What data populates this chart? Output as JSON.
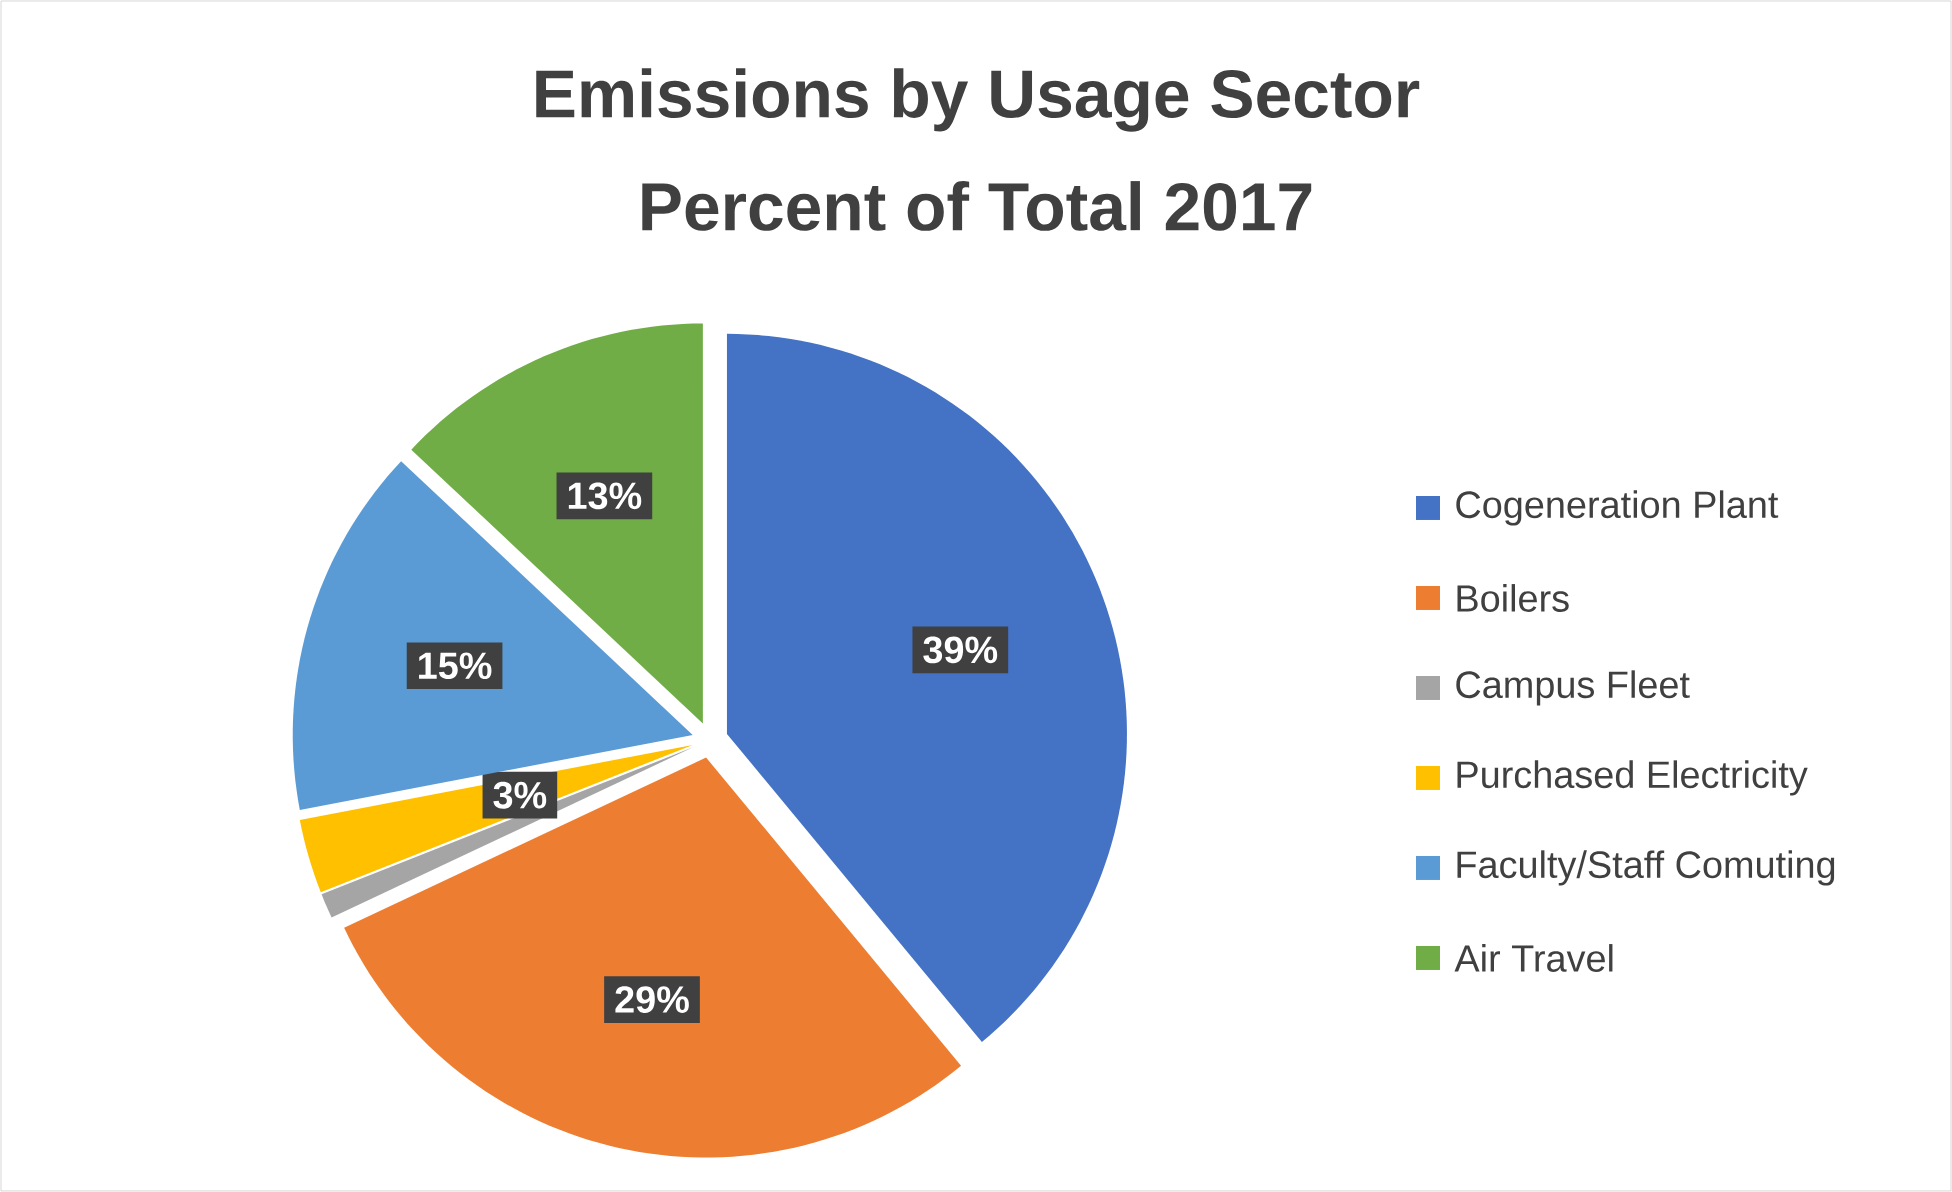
{
  "chart_data": {
    "type": "pie",
    "title": "Emissions by Usage Sector",
    "subtitle": "Percent of Total 2017",
    "categories": [
      "Cogeneration Plant",
      "Boilers",
      "Campus Fleet",
      "Purchased Electricity",
      "Faculty/Staff Comuting",
      "Air Travel"
    ],
    "values": [
      39,
      29,
      1,
      3,
      15,
      13
    ],
    "colors": [
      "#4472c4",
      "#ed7d31",
      "#a5a5a5",
      "#ffc000",
      "#5b9bd5",
      "#70ad47"
    ],
    "value_labels": [
      "39%",
      "29%",
      null,
      "3%",
      "15%",
      "13%"
    ],
    "legend": "right"
  }
}
